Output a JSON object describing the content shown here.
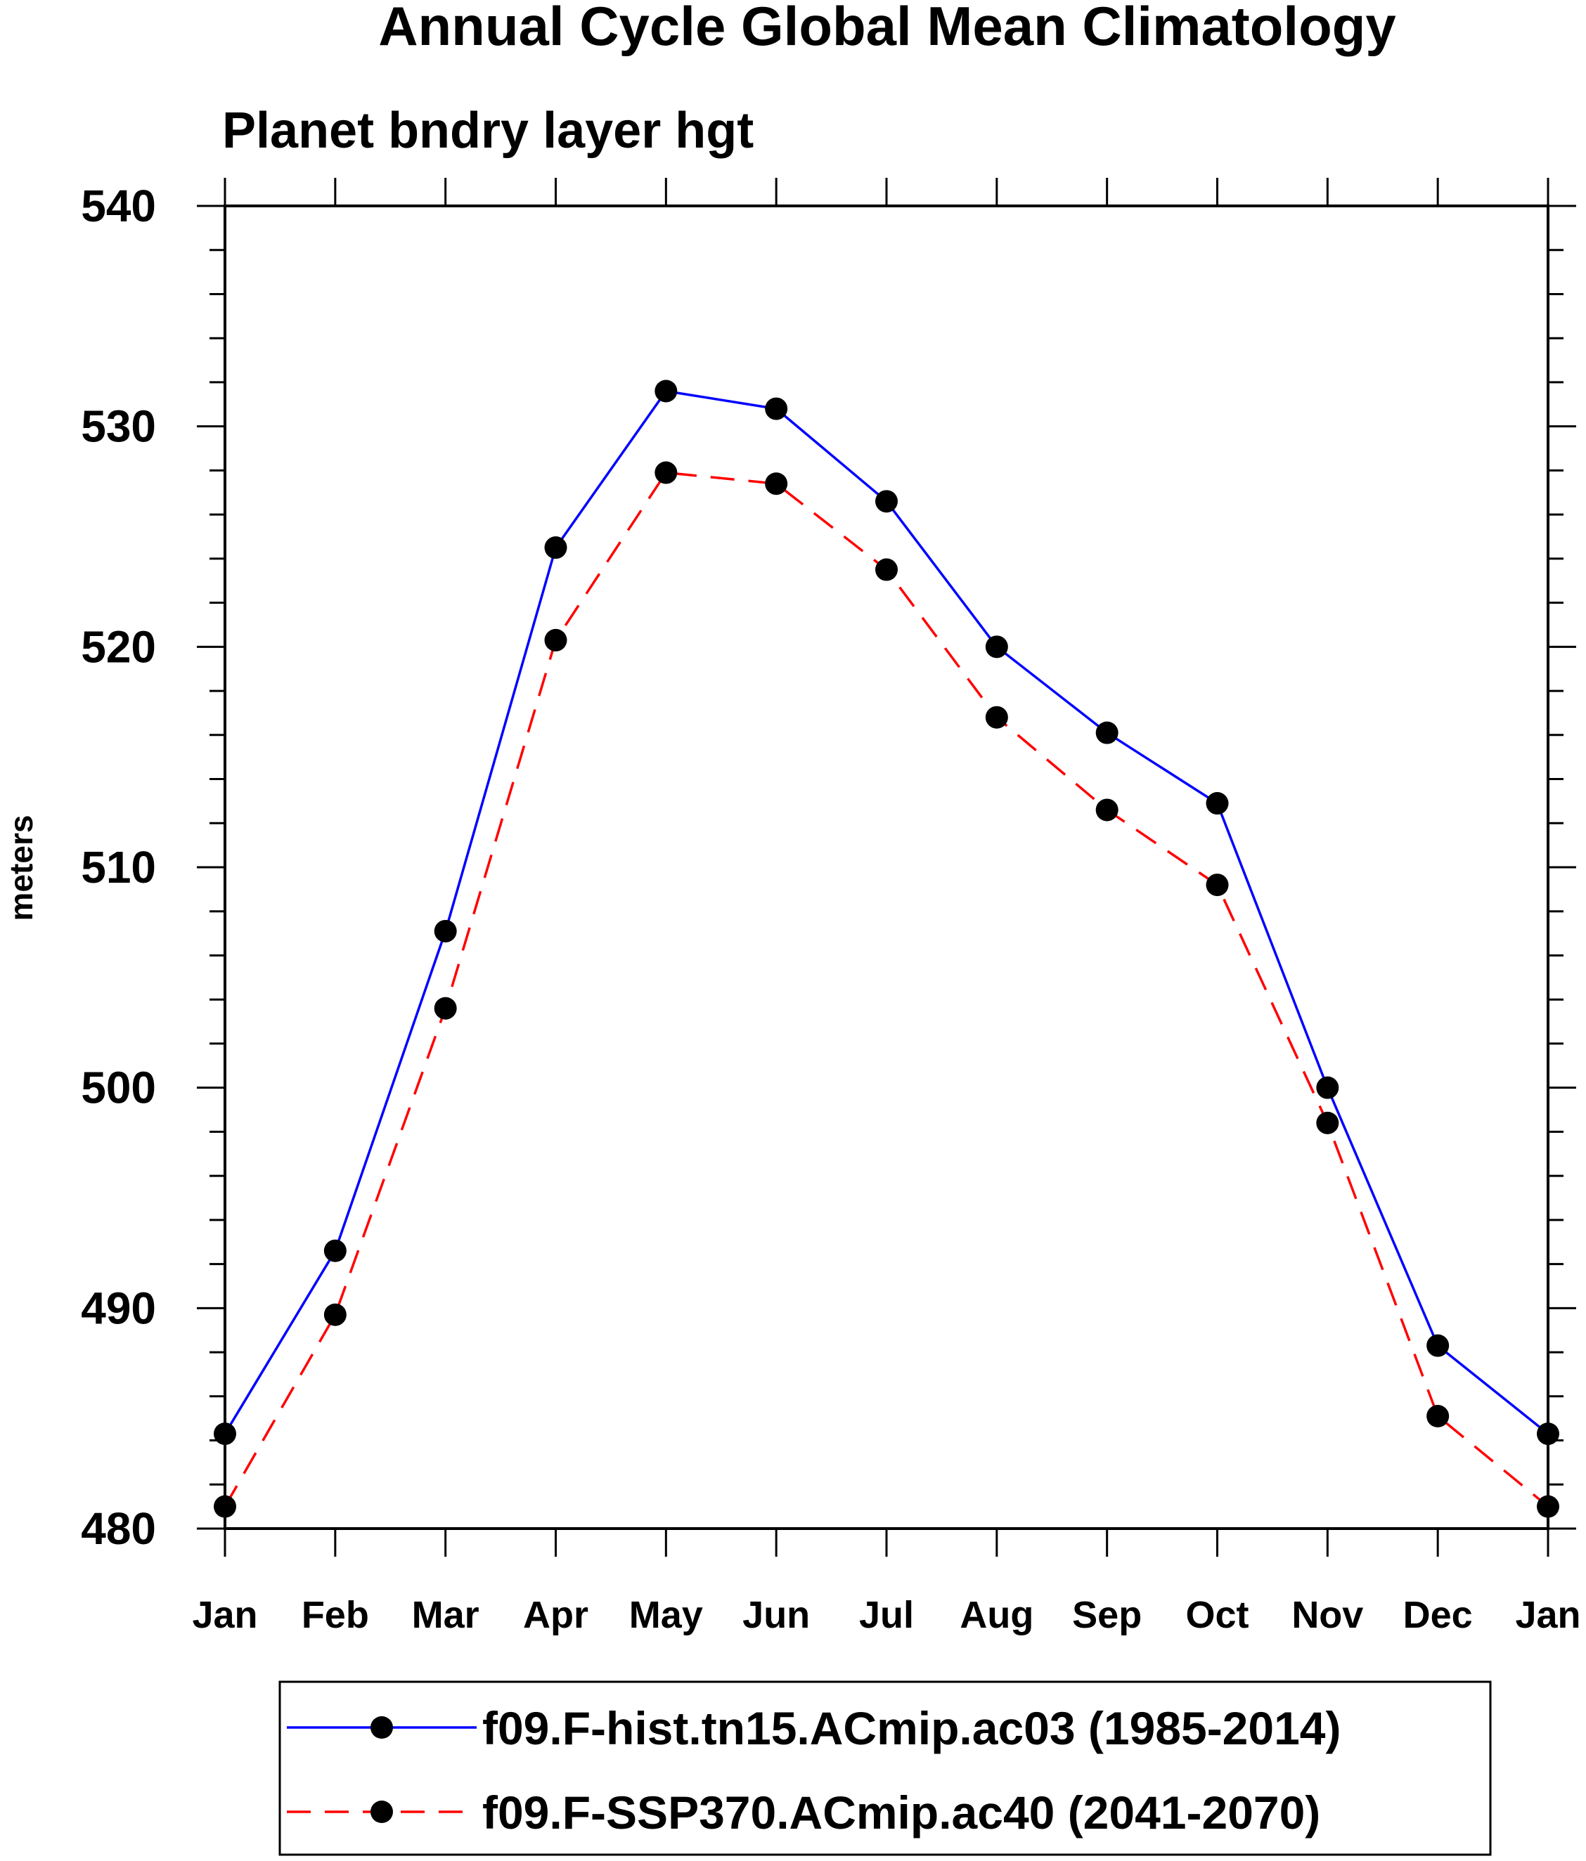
{
  "chart_data": {
    "type": "line",
    "title": "Annual Cycle Global Mean Climatology",
    "subtitle": "Planet bndry layer hgt",
    "xlabel": "",
    "ylabel": "meters",
    "categories": [
      "Jan",
      "Feb",
      "Mar",
      "Apr",
      "May",
      "Jun",
      "Jul",
      "Aug",
      "Sep",
      "Oct",
      "Nov",
      "Dec",
      "Jan"
    ],
    "ylim": [
      480,
      540
    ],
    "yticks": [
      480,
      490,
      500,
      510,
      520,
      530,
      540
    ],
    "ytick_labels": [
      "480",
      "490",
      "500",
      "510",
      "520",
      "530",
      "540"
    ],
    "yminor_step": 2,
    "grid": false,
    "legend_position": "bottom",
    "series": [
      {
        "name": "f09.F-hist.tn15.ACmip.ac03 (1985-2014)",
        "color": "#0000ff",
        "dash": "solid",
        "marker": "filled-circle",
        "values": [
          484.3,
          492.6,
          507.1,
          524.5,
          531.6,
          530.8,
          526.6,
          520.0,
          516.1,
          512.9,
          500.0,
          488.3,
          484.3
        ]
      },
      {
        "name": "f09.F-SSP370.ACmip.ac40 (2041-2070)",
        "color": "#ff0000",
        "dash": "dashed",
        "marker": "filled-circle",
        "values": [
          481.0,
          489.7,
          503.6,
          520.3,
          527.9,
          527.4,
          523.5,
          516.8,
          512.6,
          509.2,
          498.4,
          485.1,
          481.0
        ]
      }
    ]
  }
}
